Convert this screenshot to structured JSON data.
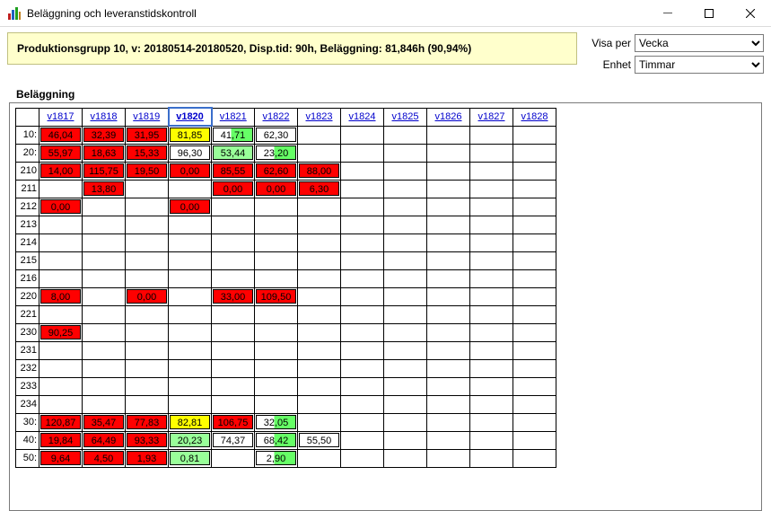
{
  "window": {
    "title": "Beläggning och leveranstidskontroll"
  },
  "banner": "Produktionsgrupp 10, v: 20180514-20180520, Disp.tid: 90h, Beläggning: 81,846h (90,94%)",
  "controls": {
    "visa_per_label": "Visa per",
    "visa_per_value": "Vecka",
    "enhet_label": "Enhet",
    "enhet_value": "Timmar"
  },
  "section_title": "Beläggning",
  "grid": {
    "columns": [
      "v1817",
      "v1818",
      "v1819",
      "v1820",
      "v1821",
      "v1822",
      "v1823",
      "v1824",
      "v1825",
      "v1826",
      "v1827",
      "v1828"
    ],
    "current_col_index": 3,
    "rows": [
      {
        "label": "10:",
        "cells": [
          {
            "v": "46,04",
            "c": "red"
          },
          {
            "v": "32,39",
            "c": "red"
          },
          {
            "v": "31,95",
            "c": "red"
          },
          {
            "v": "81,85",
            "c": "yellow"
          },
          {
            "v": "41,71",
            "c": "greenR",
            "split": true
          },
          {
            "v": "62,30",
            "c": "white"
          },
          {},
          {},
          {},
          {},
          {},
          {}
        ]
      },
      {
        "label": "20:",
        "cells": [
          {
            "v": "55,97",
            "c": "red"
          },
          {
            "v": "18,63",
            "c": "red"
          },
          {
            "v": "15,33",
            "c": "red"
          },
          {
            "v": "96,30",
            "c": "white"
          },
          {
            "v": "53,44",
            "c": "greenL"
          },
          {
            "v": "23,20",
            "c": "greenR",
            "split": true
          },
          {},
          {},
          {},
          {},
          {},
          {}
        ]
      },
      {
        "label": "210",
        "cells": [
          {
            "v": "14,00",
            "c": "red"
          },
          {
            "v": "115,75",
            "c": "red"
          },
          {
            "v": "19,50",
            "c": "red"
          },
          {
            "v": "0,00",
            "c": "red"
          },
          {
            "v": "85,55",
            "c": "red"
          },
          {
            "v": "62,60",
            "c": "red"
          },
          {
            "v": "88,00",
            "c": "red"
          },
          {},
          {},
          {},
          {},
          {}
        ]
      },
      {
        "label": "211",
        "cells": [
          {},
          {
            "v": "13,80",
            "c": "red"
          },
          {},
          {},
          {
            "v": "0,00",
            "c": "red"
          },
          {
            "v": "0,00",
            "c": "red"
          },
          {
            "v": "6,30",
            "c": "red"
          },
          {},
          {},
          {},
          {},
          {}
        ]
      },
      {
        "label": "212",
        "cells": [
          {
            "v": "0,00",
            "c": "red"
          },
          {},
          {},
          {
            "v": "0,00",
            "c": "red"
          },
          {},
          {},
          {},
          {},
          {},
          {},
          {},
          {}
        ]
      },
      {
        "label": "213",
        "cells": [
          {},
          {},
          {},
          {},
          {},
          {},
          {},
          {},
          {},
          {},
          {},
          {}
        ]
      },
      {
        "label": "214",
        "cells": [
          {},
          {},
          {},
          {},
          {},
          {},
          {},
          {},
          {},
          {},
          {},
          {}
        ]
      },
      {
        "label": "215",
        "cells": [
          {},
          {},
          {},
          {},
          {},
          {},
          {},
          {},
          {},
          {},
          {},
          {}
        ]
      },
      {
        "label": "216",
        "cells": [
          {},
          {},
          {},
          {},
          {},
          {},
          {},
          {},
          {},
          {},
          {},
          {}
        ]
      },
      {
        "label": "220",
        "cells": [
          {
            "v": "8,00",
            "c": "red"
          },
          {},
          {
            "v": "0,00",
            "c": "red"
          },
          {},
          {
            "v": "33,00",
            "c": "red"
          },
          {
            "v": "109,50",
            "c": "red"
          },
          {},
          {},
          {},
          {},
          {},
          {}
        ]
      },
      {
        "label": "221",
        "cells": [
          {},
          {},
          {},
          {},
          {},
          {},
          {},
          {},
          {},
          {},
          {},
          {}
        ]
      },
      {
        "label": "230",
        "cells": [
          {
            "v": "90,25",
            "c": "red"
          },
          {},
          {},
          {},
          {},
          {},
          {},
          {},
          {},
          {},
          {},
          {}
        ]
      },
      {
        "label": "231",
        "cells": [
          {},
          {},
          {},
          {},
          {},
          {},
          {},
          {},
          {},
          {},
          {},
          {}
        ]
      },
      {
        "label": "232",
        "cells": [
          {},
          {},
          {},
          {},
          {},
          {},
          {},
          {},
          {},
          {},
          {},
          {}
        ]
      },
      {
        "label": "233",
        "cells": [
          {},
          {},
          {},
          {},
          {},
          {},
          {},
          {},
          {},
          {},
          {},
          {}
        ]
      },
      {
        "label": "234",
        "cells": [
          {},
          {},
          {},
          {},
          {},
          {},
          {},
          {},
          {},
          {},
          {},
          {}
        ]
      },
      {
        "label": "30:",
        "cells": [
          {
            "v": "120,87",
            "c": "red"
          },
          {
            "v": "35,47",
            "c": "red"
          },
          {
            "v": "77,83",
            "c": "red"
          },
          {
            "v": "82,81",
            "c": "yellow"
          },
          {
            "v": "106,75",
            "c": "red"
          },
          {
            "v": "32,05",
            "c": "greenR",
            "split": true
          },
          {},
          {},
          {},
          {},
          {},
          {}
        ]
      },
      {
        "label": "40:",
        "cells": [
          {
            "v": "19,84",
            "c": "red"
          },
          {
            "v": "64,49",
            "c": "red"
          },
          {
            "v": "93,33",
            "c": "red"
          },
          {
            "v": "20,23",
            "c": "greenL"
          },
          {
            "v": "74,37",
            "c": "white"
          },
          {
            "v": "68,42",
            "c": "greenR",
            "split": true
          },
          {
            "v": "55,50",
            "c": "white"
          },
          {},
          {},
          {},
          {},
          {}
        ]
      },
      {
        "label": "50:",
        "cells": [
          {
            "v": "9,64",
            "c": "red"
          },
          {
            "v": "4,50",
            "c": "red"
          },
          {
            "v": "1,93",
            "c": "red"
          },
          {
            "v": "0,81",
            "c": "greenL"
          },
          {},
          {
            "v": "2,90",
            "c": "greenR",
            "split": true
          },
          {},
          {},
          {},
          {},
          {},
          {}
        ]
      }
    ],
    "colors": {
      "red": "#ff0000",
      "yellow": "#ffff00",
      "greenL": "#99ff99",
      "greenR": "#66ff66",
      "white": "#ffffff"
    }
  }
}
